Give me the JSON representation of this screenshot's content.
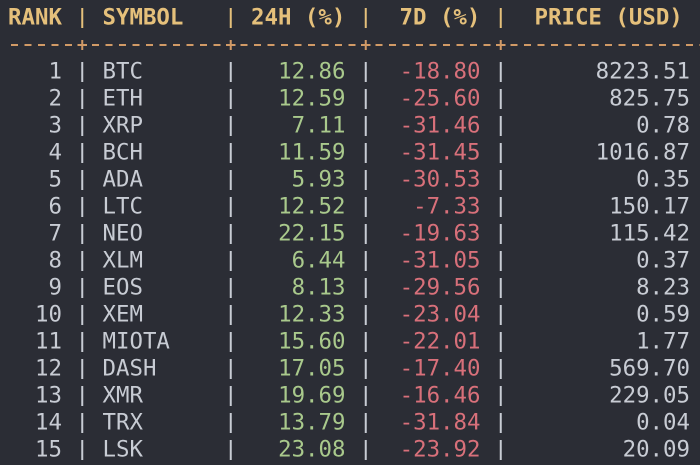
{
  "header": [
    "RANK",
    "SYMBOL",
    "24H (%)",
    "7D (%)",
    "PRICE (USD)"
  ],
  "rows": [
    [
      "1",
      "BTC",
      "12.86",
      "-18.80",
      "8223.51"
    ],
    [
      "2",
      "ETH",
      "12.59",
      "-25.60",
      "825.75"
    ],
    [
      "3",
      "XRP",
      "7.11",
      "-31.46",
      "0.78"
    ],
    [
      "4",
      "BCH",
      "11.59",
      "-31.45",
      "1016.87"
    ],
    [
      "5",
      "ADA",
      "5.93",
      "-30.53",
      "0.35"
    ],
    [
      "6",
      "LTC",
      "12.52",
      "-7.33",
      "150.17"
    ],
    [
      "7",
      "NEO",
      "22.15",
      "-19.63",
      "115.42"
    ],
    [
      "8",
      "XLM",
      "6.44",
      "-31.05",
      "0.37"
    ],
    [
      "9",
      "EOS",
      "8.13",
      "-29.56",
      "8.23"
    ],
    [
      "10",
      "XEM",
      "12.33",
      "-23.04",
      "0.59"
    ],
    [
      "11",
      "MIOTA",
      "15.60",
      "-22.01",
      "1.77"
    ],
    [
      "12",
      "DASH",
      "17.05",
      "-17.40",
      "569.70"
    ],
    [
      "13",
      "XMR",
      "19.69",
      "-16.46",
      "229.05"
    ],
    [
      "14",
      "TRX",
      "13.79",
      "-31.84",
      "0.04"
    ],
    [
      "15",
      "LSK",
      "23.08",
      "-23.92",
      "20.09"
    ]
  ]
}
